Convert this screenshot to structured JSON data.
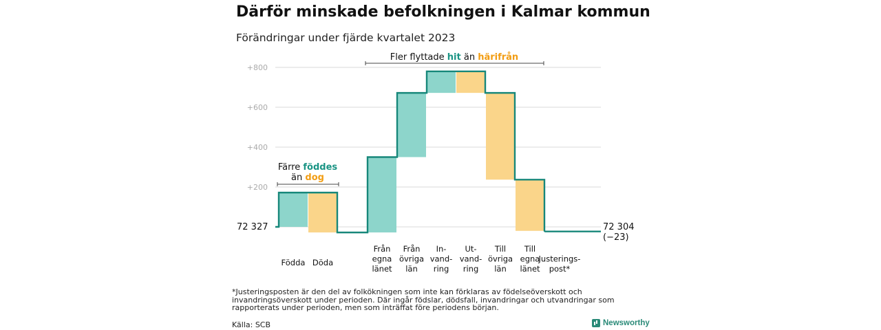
{
  "title": "Därför minskade befolkningen i Kalmar kommun",
  "subtitle": "Förändringar under fjärde kvartalet 2023",
  "chart_data": {
    "type": "waterfall",
    "start_value": 72327,
    "start_label": "72  327",
    "end_value": 72304,
    "end_label": "72 304",
    "end_change_label": "(−23)",
    "y_ticks": [
      {
        "value": 800,
        "label": "+800"
      },
      {
        "value": 600,
        "label": "+600"
      },
      {
        "value": 400,
        "label": "+400"
      },
      {
        "value": 200,
        "label": "+200"
      }
    ],
    "ylim": [
      0,
      820
    ],
    "steps": [
      {
        "label_lines": [
          "Födda"
        ],
        "change": 172,
        "kind": "increase"
      },
      {
        "label_lines": [
          "Döda"
        ],
        "change": -200,
        "kind": "decrease"
      },
      {
        "label_lines": [
          ""
        ],
        "change": 0,
        "kind": "gap"
      },
      {
        "label_lines": [
          "Från",
          "egna",
          "länet"
        ],
        "change": 378,
        "kind": "increase"
      },
      {
        "label_lines": [
          "Från",
          "övriga",
          "län"
        ],
        "change": 322,
        "kind": "increase"
      },
      {
        "label_lines": [
          "In-",
          "vand-",
          "ring"
        ],
        "change": 108,
        "kind": "increase"
      },
      {
        "label_lines": [
          "Ut-",
          "vand-",
          "ring"
        ],
        "change": -108,
        "kind": "decrease"
      },
      {
        "label_lines": [
          "Till",
          "övriga",
          "län"
        ],
        "change": -435,
        "kind": "decrease"
      },
      {
        "label_lines": [
          "Till",
          "egna",
          "länet"
        ],
        "change": -257,
        "kind": "decrease"
      },
      {
        "label_lines": [
          "Justerings-",
          "post*"
        ],
        "change": -3,
        "kind": "adjust"
      }
    ],
    "annotations": {
      "left_pre": "Färre ",
      "left_highlight_1": "föddes",
      "left_mid": "än ",
      "left_highlight_2": "dog",
      "top_pre": "Fler flyttade ",
      "top_highlight_1": "hit",
      "top_mid": " än ",
      "top_highlight_2": "härifrån"
    },
    "colors": {
      "increase": "#8dd5cb",
      "decrease": "#fad58a",
      "line": "#17877a",
      "teal_text": "#1a9484",
      "orange_text": "#f29d13",
      "grid": "#d9d9d9",
      "tick_text": "#aaaaaa"
    }
  },
  "footnote": "*Justeringsposten är den del av folkökningen som inte kan förklaras av födelseöverskott och invandringsöverskott under perioden. Där ingår födslar, dödsfall, invandringar och utvandringar som rapporterats under perioden, men som inträffat före periodens början.",
  "source": "Källa: SCB",
  "brand": "Newsworthy"
}
